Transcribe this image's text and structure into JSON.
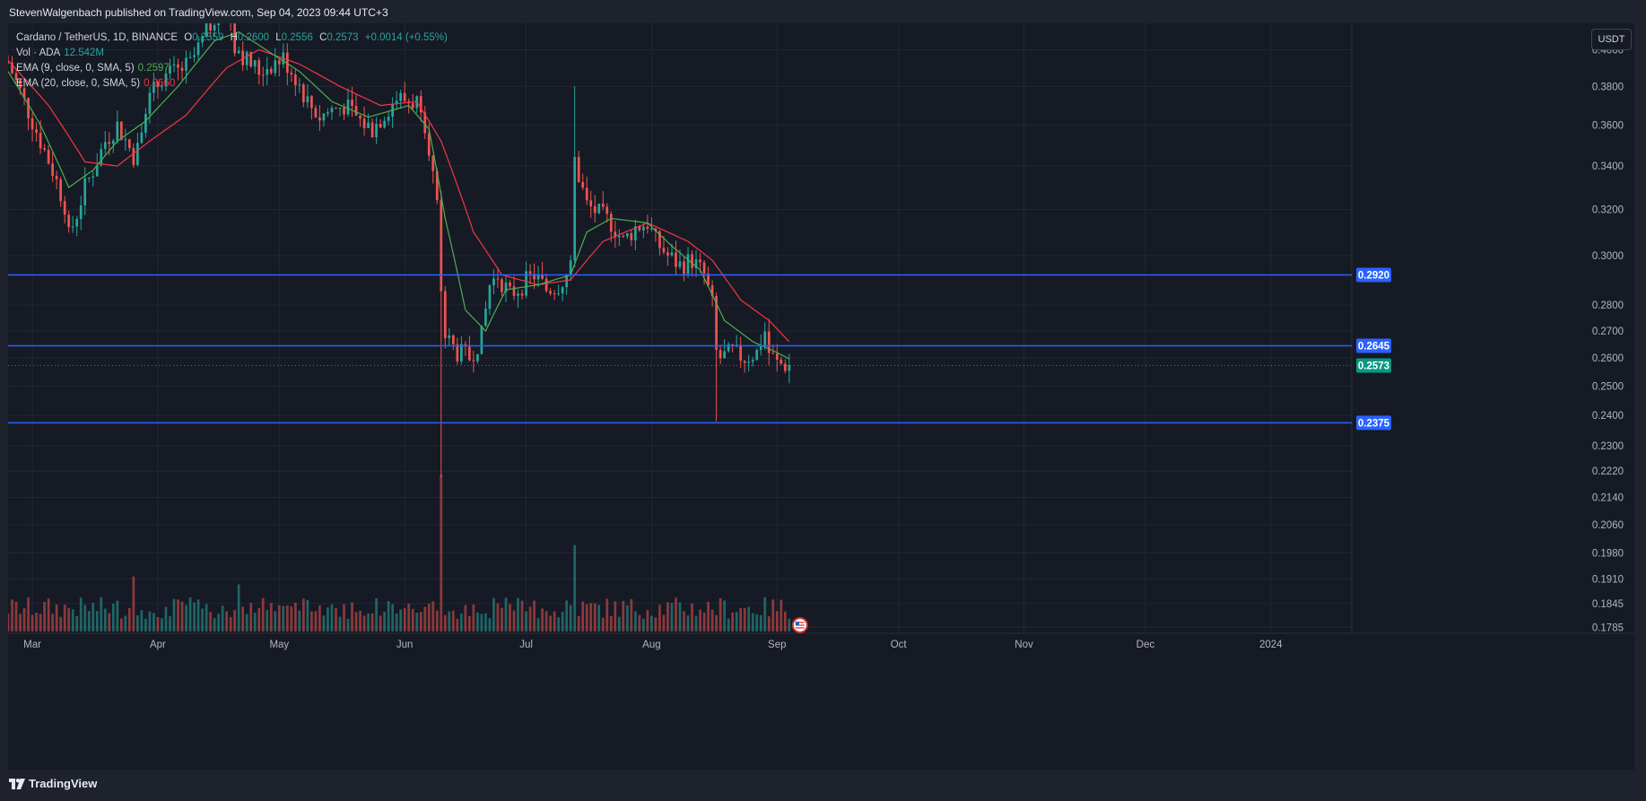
{
  "header": {
    "publisher_line": "StevenWalgenbach published on TradingView.com, Sep 04, 2023 09:44 UTC+3"
  },
  "legend": {
    "symbol": "Cardano / TetherUS, 1D, BINANCE",
    "o_label": "O",
    "o_value": "0.2559",
    "h_label": "H",
    "h_value": "0.2600",
    "l_label": "L",
    "l_value": "0.2556",
    "c_label": "C",
    "c_value": "0.2573",
    "change": "+0.0014 (+0.55%)",
    "vol_label": "Vol · ADA",
    "vol_value": "12.542M",
    "ema9_label": "EMA (9, close, 0, SMA, 5)",
    "ema9_value": "0.2597",
    "ema20_label": "EMA (20, close, 0, SMA, 5)",
    "ema20_value": "0.2660"
  },
  "currency_button": "USDT",
  "footer": {
    "brand": "TradingView"
  },
  "chart_data": {
    "type": "candlestick",
    "symbol": "ADA/USDT",
    "scale": "log",
    "ylim": [
      0.177,
      0.415
    ],
    "y_ticks": [
      "0.4000",
      "0.3800",
      "0.3600",
      "0.3400",
      "0.3200",
      "0.3000",
      "0.2800",
      "0.2700",
      "0.2600",
      "0.2500",
      "0.2400",
      "0.2300",
      "0.2220",
      "0.2140",
      "0.2060",
      "0.1980",
      "0.1910",
      "0.1845",
      "0.1785"
    ],
    "x_ticks": [
      {
        "label": "Mar",
        "date": "2023-03-01"
      },
      {
        "label": "Apr",
        "date": "2023-04-01"
      },
      {
        "label": "May",
        "date": "2023-05-01"
      },
      {
        "label": "Jun",
        "date": "2023-06-01"
      },
      {
        "label": "Jul",
        "date": "2023-07-01"
      },
      {
        "label": "Aug",
        "date": "2023-08-01"
      },
      {
        "label": "Sep",
        "date": "2023-09-01"
      },
      {
        "label": "Oct",
        "date": "2023-10-01"
      },
      {
        "label": "Nov",
        "date": "2023-11-01"
      },
      {
        "label": "Dec",
        "date": "2023-12-01"
      },
      {
        "label": "2024",
        "date": "2024-01-01"
      }
    ],
    "date_range": [
      "2023-02-23",
      "2024-01-21"
    ],
    "price_path": [
      [
        "2023-02-23",
        0.393
      ],
      [
        "2023-02-27",
        0.372
      ],
      [
        "2023-03-03",
        0.352
      ],
      [
        "2023-03-06",
        0.338
      ],
      [
        "2023-03-09",
        0.322
      ],
      [
        "2023-03-10",
        0.308
      ],
      [
        "2023-03-12",
        0.318
      ],
      [
        "2023-03-14",
        0.33
      ],
      [
        "2023-03-16",
        0.338
      ],
      [
        "2023-03-19",
        0.352
      ],
      [
        "2023-03-22",
        0.36
      ],
      [
        "2023-03-26",
        0.345
      ],
      [
        "2023-03-29",
        0.37
      ],
      [
        "2023-04-02",
        0.385
      ],
      [
        "2023-04-06",
        0.388
      ],
      [
        "2023-04-09",
        0.392
      ],
      [
        "2023-04-12",
        0.405
      ],
      [
        "2023-04-15",
        0.42
      ],
      [
        "2023-04-18",
        0.43
      ],
      [
        "2023-04-20",
        0.402
      ],
      [
        "2023-04-23",
        0.394
      ],
      [
        "2023-04-26",
        0.388
      ],
      [
        "2023-04-29",
        0.392
      ],
      [
        "2023-05-02",
        0.395
      ],
      [
        "2023-05-05",
        0.385
      ],
      [
        "2023-05-08",
        0.372
      ],
      [
        "2023-05-11",
        0.364
      ],
      [
        "2023-05-14",
        0.368
      ],
      [
        "2023-05-17",
        0.37
      ],
      [
        "2023-05-21",
        0.362
      ],
      [
        "2023-05-24",
        0.358
      ],
      [
        "2023-05-27",
        0.366
      ],
      [
        "2023-05-30",
        0.374
      ],
      [
        "2023-06-02",
        0.372
      ],
      [
        "2023-06-05",
        0.372
      ],
      [
        "2023-06-07",
        0.35
      ],
      [
        "2023-06-09",
        0.32
      ],
      [
        "2023-06-10",
        0.282
      ],
      [
        "2023-06-11",
        0.268
      ],
      [
        "2023-06-14",
        0.262
      ],
      [
        "2023-06-17",
        0.26
      ],
      [
        "2023-06-20",
        0.268
      ],
      [
        "2023-06-22",
        0.288
      ],
      [
        "2023-06-24",
        0.292
      ],
      [
        "2023-06-27",
        0.284
      ],
      [
        "2023-06-30",
        0.288
      ],
      [
        "2023-07-03",
        0.292
      ],
      [
        "2023-07-06",
        0.286
      ],
      [
        "2023-07-09",
        0.288
      ],
      [
        "2023-07-12",
        0.294
      ],
      [
        "2023-07-13",
        0.348
      ],
      [
        "2023-07-14",
        0.335
      ],
      [
        "2023-07-16",
        0.322
      ],
      [
        "2023-07-19",
        0.318
      ],
      [
        "2023-07-22",
        0.314
      ],
      [
        "2023-07-25",
        0.306
      ],
      [
        "2023-07-28",
        0.312
      ],
      [
        "2023-07-31",
        0.314
      ],
      [
        "2023-08-02",
        0.306
      ],
      [
        "2023-08-05",
        0.3
      ],
      [
        "2023-08-08",
        0.296
      ],
      [
        "2023-08-11",
        0.298
      ],
      [
        "2023-08-14",
        0.292
      ],
      [
        "2023-08-16",
        0.28
      ],
      [
        "2023-08-17",
        0.262
      ],
      [
        "2023-08-18",
        0.26
      ],
      [
        "2023-08-21",
        0.262
      ],
      [
        "2023-08-24",
        0.26
      ],
      [
        "2023-08-27",
        0.262
      ],
      [
        "2023-08-29",
        0.27
      ],
      [
        "2023-08-30",
        0.262
      ],
      [
        "2023-09-01",
        0.258
      ],
      [
        "2023-09-04",
        0.2573
      ]
    ],
    "ema9_path": [
      [
        "2023-02-23",
        0.388
      ],
      [
        "2023-03-03",
        0.36
      ],
      [
        "2023-03-10",
        0.33
      ],
      [
        "2023-03-16",
        0.338
      ],
      [
        "2023-03-22",
        0.352
      ],
      [
        "2023-03-29",
        0.362
      ],
      [
        "2023-04-06",
        0.38
      ],
      [
        "2023-04-15",
        0.405
      ],
      [
        "2023-04-21",
        0.41
      ],
      [
        "2023-04-29",
        0.398
      ],
      [
        "2023-05-06",
        0.388
      ],
      [
        "2023-05-14",
        0.372
      ],
      [
        "2023-05-23",
        0.364
      ],
      [
        "2023-06-02",
        0.37
      ],
      [
        "2023-06-07",
        0.358
      ],
      [
        "2023-06-11",
        0.316
      ],
      [
        "2023-06-16",
        0.278
      ],
      [
        "2023-06-21",
        0.27
      ],
      [
        "2023-06-26",
        0.286
      ],
      [
        "2023-07-04",
        0.288
      ],
      [
        "2023-07-12",
        0.292
      ],
      [
        "2023-07-16",
        0.31
      ],
      [
        "2023-07-22",
        0.316
      ],
      [
        "2023-07-31",
        0.314
      ],
      [
        "2023-08-06",
        0.304
      ],
      [
        "2023-08-13",
        0.294
      ],
      [
        "2023-08-19",
        0.274
      ],
      [
        "2023-08-26",
        0.266
      ],
      [
        "2023-09-01",
        0.262
      ],
      [
        "2023-09-04",
        0.2597
      ]
    ],
    "ema20_path": [
      [
        "2023-02-23",
        0.394
      ],
      [
        "2023-03-05",
        0.37
      ],
      [
        "2023-03-14",
        0.342
      ],
      [
        "2023-03-22",
        0.34
      ],
      [
        "2023-03-30",
        0.352
      ],
      [
        "2023-04-08",
        0.365
      ],
      [
        "2023-04-18",
        0.39
      ],
      [
        "2023-04-26",
        0.4
      ],
      [
        "2023-05-06",
        0.392
      ],
      [
        "2023-05-16",
        0.38
      ],
      [
        "2023-05-26",
        0.37
      ],
      [
        "2023-06-04",
        0.372
      ],
      [
        "2023-06-10",
        0.352
      ],
      [
        "2023-06-18",
        0.31
      ],
      [
        "2023-06-25",
        0.292
      ],
      [
        "2023-07-04",
        0.288
      ],
      [
        "2023-07-12",
        0.29
      ],
      [
        "2023-07-20",
        0.306
      ],
      [
        "2023-07-31",
        0.314
      ],
      [
        "2023-08-10",
        0.306
      ],
      [
        "2023-08-16",
        0.298
      ],
      [
        "2023-08-23",
        0.282
      ],
      [
        "2023-08-30",
        0.274
      ],
      [
        "2023-09-04",
        0.266
      ]
    ],
    "horizontal_levels": [
      {
        "value": 0.292,
        "label": "0.2920",
        "color": "#2962ff"
      },
      {
        "value": 0.2645,
        "label": "0.2645",
        "color": "#2962ff"
      },
      {
        "value": 0.2375,
        "label": "0.2375",
        "color": "#2962ff"
      }
    ],
    "last_price": {
      "value": 0.2573,
      "label": "0.2573",
      "color": "#089981"
    },
    "volume_spikes": [
      [
        "2023-06-10",
        1.0
      ],
      [
        "2023-07-13",
        0.55
      ],
      [
        "2023-03-26",
        0.35
      ],
      [
        "2023-04-21",
        0.3
      ]
    ],
    "series": [
      {
        "name": "EMA (9, close, 0, SMA, 5)",
        "color": "#4caf50"
      },
      {
        "name": "EMA (20, close, 0, SMA, 5)",
        "color": "#f23645"
      }
    ],
    "colors": {
      "up": "#26a69a",
      "down": "#ef5350",
      "grid": "#232733",
      "axis_text": "#b2b5be"
    },
    "grid": true
  }
}
